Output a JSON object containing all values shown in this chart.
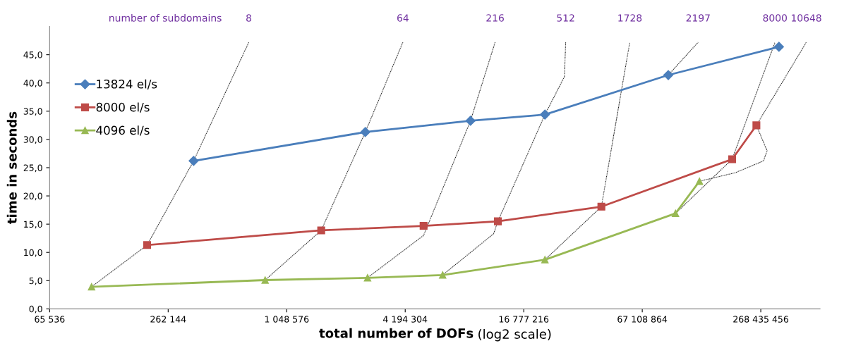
{
  "chart_data": {
    "type": "line",
    "log": "x",
    "grid": false,
    "legend": "top left",
    "ylabel": "time in seconds",
    "xlabel": "total number of DOFs",
    "annotations": [
      "(log2 scale)",
      "number of subdomains"
    ],
    "xlim": [
      65536,
      536870912
    ],
    "xticks": [
      {
        "value": 65536,
        "label": "65 536"
      },
      {
        "value": 262144,
        "label": "262 144"
      },
      {
        "value": 1048576,
        "label": "1 048 576"
      },
      {
        "value": 4194304,
        "label": "4 194 304"
      },
      {
        "value": 16777216,
        "label": "16 777 216"
      },
      {
        "value": 67108864,
        "label": "67 108 864"
      },
      {
        "value": 268435456,
        "label": "268 435 456"
      }
    ],
    "ylim": [
      0,
      50
    ],
    "yticks": [
      {
        "value": 0,
        "label": "0,0"
      },
      {
        "value": 5,
        "label": "5,0"
      },
      {
        "value": 10,
        "label": "10,0"
      },
      {
        "value": 15,
        "label": "15,0"
      },
      {
        "value": 20,
        "label": "20,0"
      },
      {
        "value": 25,
        "label": "25,0"
      },
      {
        "value": 30,
        "label": "30,0"
      },
      {
        "value": 35,
        "label": "35,0"
      },
      {
        "value": 40,
        "label": "40,0"
      },
      {
        "value": 45,
        "label": "45,0"
      }
    ],
    "series": [
      {
        "name": "8",
        "color": "#000000",
        "line_style": "dotted",
        "marker": "none",
        "x": [
          107000,
          205000,
          353000,
          673000
        ],
        "values": [
          3.9,
          11.3,
          26.2,
          47.2
        ]
      },
      {
        "name": "64",
        "color": "#000000",
        "line_style": "dotted",
        "marker": "none",
        "x": [
          815000,
          1570000,
          2630000,
          4080000
        ],
        "values": [
          5.1,
          13.9,
          31.3,
          47.2
        ]
      },
      {
        "name": "216",
        "color": "#000000",
        "line_style": "dotted",
        "marker": "none",
        "x": [
          2700000,
          5200000,
          9000000,
          12000000
        ],
        "values": [
          5.5,
          13.0,
          33.3,
          47.2
        ]
      },
      {
        "name": "512",
        "color": "#000000",
        "line_style": "dotted",
        "marker": "none",
        "x": [
          6500000,
          11800000,
          12400000,
          21500000,
          27000000,
          27400000
        ],
        "values": [
          6.0,
          13.3,
          15.5,
          34.4,
          41.1,
          47.2
        ]
      },
      {
        "name": "1728",
        "color": "#000000",
        "line_style": "dotted",
        "marker": "none",
        "x": [
          21500000,
          41600000,
          58000000
        ],
        "values": [
          8.7,
          18.1,
          47.2
        ]
      },
      {
        "name": "2197",
        "color": "#000000",
        "line_style": "dotted",
        "marker": "none",
        "x": [
          91000000,
          129000000
        ],
        "values": [
          41.4,
          47.2
        ]
      },
      {
        "name": "8000",
        "color": "#000000",
        "line_style": "dotted",
        "marker": "none",
        "x": [
          99000000,
          192000000,
          317000000
        ],
        "values": [
          16.9,
          26.5,
          47.2
        ]
      },
      {
        "name": "10648",
        "color": "#000000",
        "line_style": "dotted",
        "marker": "none",
        "x": [
          131000000,
          199000000,
          277000000,
          289000000,
          255000000,
          457000000
        ],
        "values": [
          22.6,
          24.1,
          26.2,
          28.0,
          32.5,
          47.2
        ]
      },
      {
        "name": "13824 el/s",
        "color": "#4a7ebb",
        "line_style": "solid",
        "marker": "diamond",
        "x": [
          353000,
          2630000,
          9000000,
          21500000,
          91000000,
          332000000
        ],
        "values": [
          26.2,
          31.3,
          33.3,
          34.4,
          41.4,
          46.4
        ]
      },
      {
        "name": "8000 el/s",
        "color": "#be4b48",
        "line_style": "solid",
        "marker": "square",
        "x": [
          205000,
          1570000,
          5200000,
          12400000,
          41600000,
          192000000,
          255000000
        ],
        "values": [
          11.3,
          13.9,
          14.7,
          15.5,
          18.1,
          26.5,
          32.5
        ]
      },
      {
        "name": "4096 el/s",
        "color": "#98b954",
        "line_style": "solid",
        "marker": "triangle",
        "x": [
          107000,
          815000,
          2700000,
          6500000,
          21500000,
          99000000,
          131000000
        ],
        "values": [
          3.9,
          5.1,
          5.5,
          6.0,
          8.7,
          16.9,
          22.6
        ]
      }
    ]
  }
}
